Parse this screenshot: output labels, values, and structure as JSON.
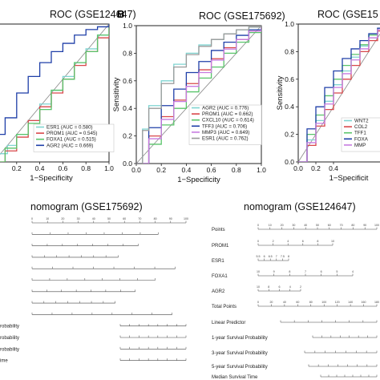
{
  "panel_letter": "B",
  "chart_data": [
    {
      "type": "line",
      "title": "ROC (GSE124647)",
      "xlabel": "1−Specificity",
      "ylabel": "",
      "xlim": [
        0,
        1
      ],
      "ylim": [
        0,
        1
      ],
      "xticks": [
        "0.2",
        "0.4",
        "0.6",
        "0.8",
        "1.0"
      ],
      "legend_position": "bottom-right",
      "series": [
        {
          "name": "ESR1 (AUC = 0.580)",
          "color": "#7fd4d0",
          "x": [
            0,
            0.05,
            0.12,
            0.2,
            0.3,
            0.4,
            0.5,
            0.6,
            0.7,
            0.8,
            0.9,
            1.0
          ],
          "y": [
            0,
            0.06,
            0.12,
            0.2,
            0.3,
            0.42,
            0.52,
            0.62,
            0.72,
            0.82,
            0.92,
            1.0
          ]
        },
        {
          "name": "PROM1 (AUC = 0.545)",
          "color": "#d8474a",
          "x": [
            0,
            0.1,
            0.2,
            0.3,
            0.4,
            0.5,
            0.6,
            0.7,
            0.8,
            0.9,
            1.0
          ],
          "y": [
            0,
            0.08,
            0.18,
            0.3,
            0.4,
            0.5,
            0.6,
            0.7,
            0.8,
            0.9,
            1.0
          ]
        },
        {
          "name": "FOXA1 (AUC = 0.515)",
          "color": "#59c46a",
          "x": [
            0,
            0.1,
            0.2,
            0.3,
            0.4,
            0.5,
            0.6,
            0.7,
            0.8,
            0.9,
            1.0
          ],
          "y": [
            0,
            0.1,
            0.2,
            0.28,
            0.38,
            0.52,
            0.6,
            0.72,
            0.8,
            0.92,
            1.0
          ]
        },
        {
          "name": "AGR2 (AUC = 0.669)",
          "color": "#1f3fa8",
          "x": [
            0,
            0.05,
            0.1,
            0.2,
            0.3,
            0.4,
            0.5,
            0.6,
            0.7,
            0.8,
            0.9,
            1.0
          ],
          "y": [
            0,
            0.2,
            0.32,
            0.5,
            0.62,
            0.72,
            0.8,
            0.86,
            0.92,
            0.96,
            0.98,
            1.0
          ]
        }
      ]
    },
    {
      "type": "line",
      "title": "ROC (GSE175692)",
      "xlabel": "1−Specificity",
      "ylabel": "Sensitivity",
      "xlim": [
        0,
        1
      ],
      "ylim": [
        0,
        1
      ],
      "xticks": [
        "0.0",
        "0.2",
        "0.4",
        "0.6",
        "0.8",
        "1.0"
      ],
      "yticks": [
        "0.0",
        "0.2",
        "0.4",
        "0.6",
        "0.8",
        "1.0"
      ],
      "legend_position": "bottom-right",
      "series": [
        {
          "name": "AGR2 (AUC = 0.776)",
          "color": "#7fd4d0",
          "x": [
            0,
            0.05,
            0.1,
            0.2,
            0.3,
            0.4,
            0.5,
            0.6,
            0.7,
            0.8,
            0.9,
            1.0
          ],
          "y": [
            0,
            0.25,
            0.42,
            0.6,
            0.72,
            0.8,
            0.86,
            0.9,
            0.94,
            0.97,
            0.99,
            1.0
          ]
        },
        {
          "name": "PROM1 (AUC = 0.662)",
          "color": "#d8474a",
          "x": [
            0,
            0.1,
            0.2,
            0.3,
            0.4,
            0.5,
            0.6,
            0.7,
            0.8,
            0.9,
            1.0
          ],
          "y": [
            0,
            0.2,
            0.34,
            0.46,
            0.58,
            0.68,
            0.76,
            0.84,
            0.9,
            0.96,
            1.0
          ]
        },
        {
          "name": "CXCL10 (AUC = 0.614)",
          "color": "#59c46a",
          "x": [
            0,
            0.1,
            0.2,
            0.3,
            0.4,
            0.5,
            0.6,
            0.7,
            0.8,
            0.9,
            1.0
          ],
          "y": [
            0,
            0.14,
            0.28,
            0.4,
            0.52,
            0.62,
            0.7,
            0.8,
            0.88,
            0.95,
            1.0
          ]
        },
        {
          "name": "TFF3 (AUC = 0.706)",
          "color": "#1f3fa8",
          "x": [
            0,
            0.1,
            0.2,
            0.3,
            0.4,
            0.5,
            0.6,
            0.7,
            0.8,
            0.9,
            1.0
          ],
          "y": [
            0,
            0.26,
            0.42,
            0.54,
            0.66,
            0.74,
            0.82,
            0.88,
            0.93,
            0.97,
            1.0
          ]
        },
        {
          "name": "MMP3 (AUC = 0.649)",
          "color": "#c77be0",
          "x": [
            0,
            0.1,
            0.2,
            0.3,
            0.4,
            0.5,
            0.6,
            0.7,
            0.8,
            0.9,
            1.0
          ],
          "y": [
            0,
            0.18,
            0.32,
            0.45,
            0.56,
            0.66,
            0.75,
            0.83,
            0.9,
            0.96,
            1.0
          ]
        },
        {
          "name": "ESR1 (AUC = 0.762)",
          "color": "#9a9a9a",
          "x": [
            0,
            0.05,
            0.1,
            0.2,
            0.3,
            0.4,
            0.5,
            0.6,
            0.7,
            0.8,
            0.9,
            1.0
          ],
          "y": [
            0,
            0.24,
            0.4,
            0.58,
            0.7,
            0.79,
            0.85,
            0.9,
            0.94,
            0.97,
            0.99,
            1.0
          ]
        }
      ]
    },
    {
      "type": "line",
      "title": "ROC (GSE15",
      "xlabel": "1−Specificit",
      "ylabel": "Sensitivity",
      "xlim": [
        0,
        1
      ],
      "ylim": [
        0,
        1
      ],
      "xticks": [
        "0.0",
        "0.2",
        "0.4"
      ],
      "yticks": [
        "0.0",
        "0.2",
        "0.4",
        "0.6",
        "0.8",
        "1.0"
      ],
      "legend_position": "bottom-right",
      "series": [
        {
          "name": "WNT2",
          "color": "#7fd4d0",
          "x": [
            0,
            0.1,
            0.2,
            0.3,
            0.4,
            0.5,
            0.6,
            0.7,
            0.8,
            0.9,
            1.0
          ],
          "y": [
            0,
            0.16,
            0.3,
            0.44,
            0.56,
            0.66,
            0.76,
            0.84,
            0.9,
            0.96,
            1.0
          ]
        },
        {
          "name": "COL2",
          "color": "#d8474a",
          "x": [
            0,
            0.1,
            0.2,
            0.3,
            0.4,
            0.5,
            0.6,
            0.7,
            0.8,
            0.9,
            1.0
          ],
          "y": [
            0,
            0.12,
            0.26,
            0.38,
            0.5,
            0.6,
            0.7,
            0.8,
            0.88,
            0.95,
            1.0
          ]
        },
        {
          "name": "TFF1",
          "color": "#59c46a",
          "x": [
            0,
            0.1,
            0.2,
            0.3,
            0.4,
            0.5,
            0.6,
            0.7,
            0.8,
            0.9,
            1.0
          ],
          "y": [
            0,
            0.2,
            0.34,
            0.48,
            0.6,
            0.7,
            0.78,
            0.85,
            0.92,
            0.97,
            1.0
          ]
        },
        {
          "name": "FOXA",
          "color": "#1f3fa8",
          "x": [
            0,
            0.1,
            0.2,
            0.3,
            0.4,
            0.5,
            0.6,
            0.7,
            0.8,
            0.9,
            1.0
          ],
          "y": [
            0,
            0.24,
            0.4,
            0.54,
            0.66,
            0.75,
            0.82,
            0.88,
            0.93,
            0.97,
            1.0
          ]
        },
        {
          "name": "MMP",
          "color": "#c77be0",
          "x": [
            0,
            0.1,
            0.2,
            0.3,
            0.4,
            0.5,
            0.6,
            0.7,
            0.8,
            0.9,
            1.0
          ],
          "y": [
            0,
            0.14,
            0.28,
            0.42,
            0.54,
            0.64,
            0.74,
            0.82,
            0.9,
            0.96,
            1.0
          ]
        }
      ]
    },
    {
      "type": "table",
      "title": "nomogram (GSE175692)",
      "rows": [
        "",
        "",
        "",
        "",
        "",
        "",
        "",
        "",
        "",
        "robability",
        "robability",
        "robability",
        "ime"
      ],
      "top_ticks": [
        "0",
        "10",
        "20",
        "30",
        "40",
        "50",
        "60",
        "70",
        "80",
        "90",
        "100"
      ]
    },
    {
      "type": "table",
      "title": "nomogram (GSE124647)",
      "rows": [
        "Points",
        "PROM1",
        "ESR1",
        "FOXA1",
        "AGR2",
        "Total Points",
        "Linear Predictor",
        "1-year Survival Probability",
        "3-year Survival Probability",
        "5-year Survival Probability",
        "Median Survival Time"
      ],
      "scales": {
        "Points": [
          "0",
          "10",
          "20",
          "30",
          "40",
          "50",
          "60",
          "70",
          "80",
          "90",
          "100"
        ],
        "PROM1": [
          "0",
          "2",
          "4",
          "6",
          "8",
          "10"
        ],
        "ESR1": [
          "5.5",
          "6",
          "6.5",
          "7",
          "7.5",
          "8"
        ],
        "FOXA1": [
          "10",
          "9",
          "8",
          "7",
          "6",
          "5",
          "4"
        ],
        "AGR2": [
          "10",
          "8",
          "6",
          "4",
          "2"
        ],
        "Total Points": [
          "0",
          "20",
          "40",
          "60",
          "80",
          "100",
          "120",
          "140",
          "160",
          "180"
        ]
      }
    }
  ]
}
